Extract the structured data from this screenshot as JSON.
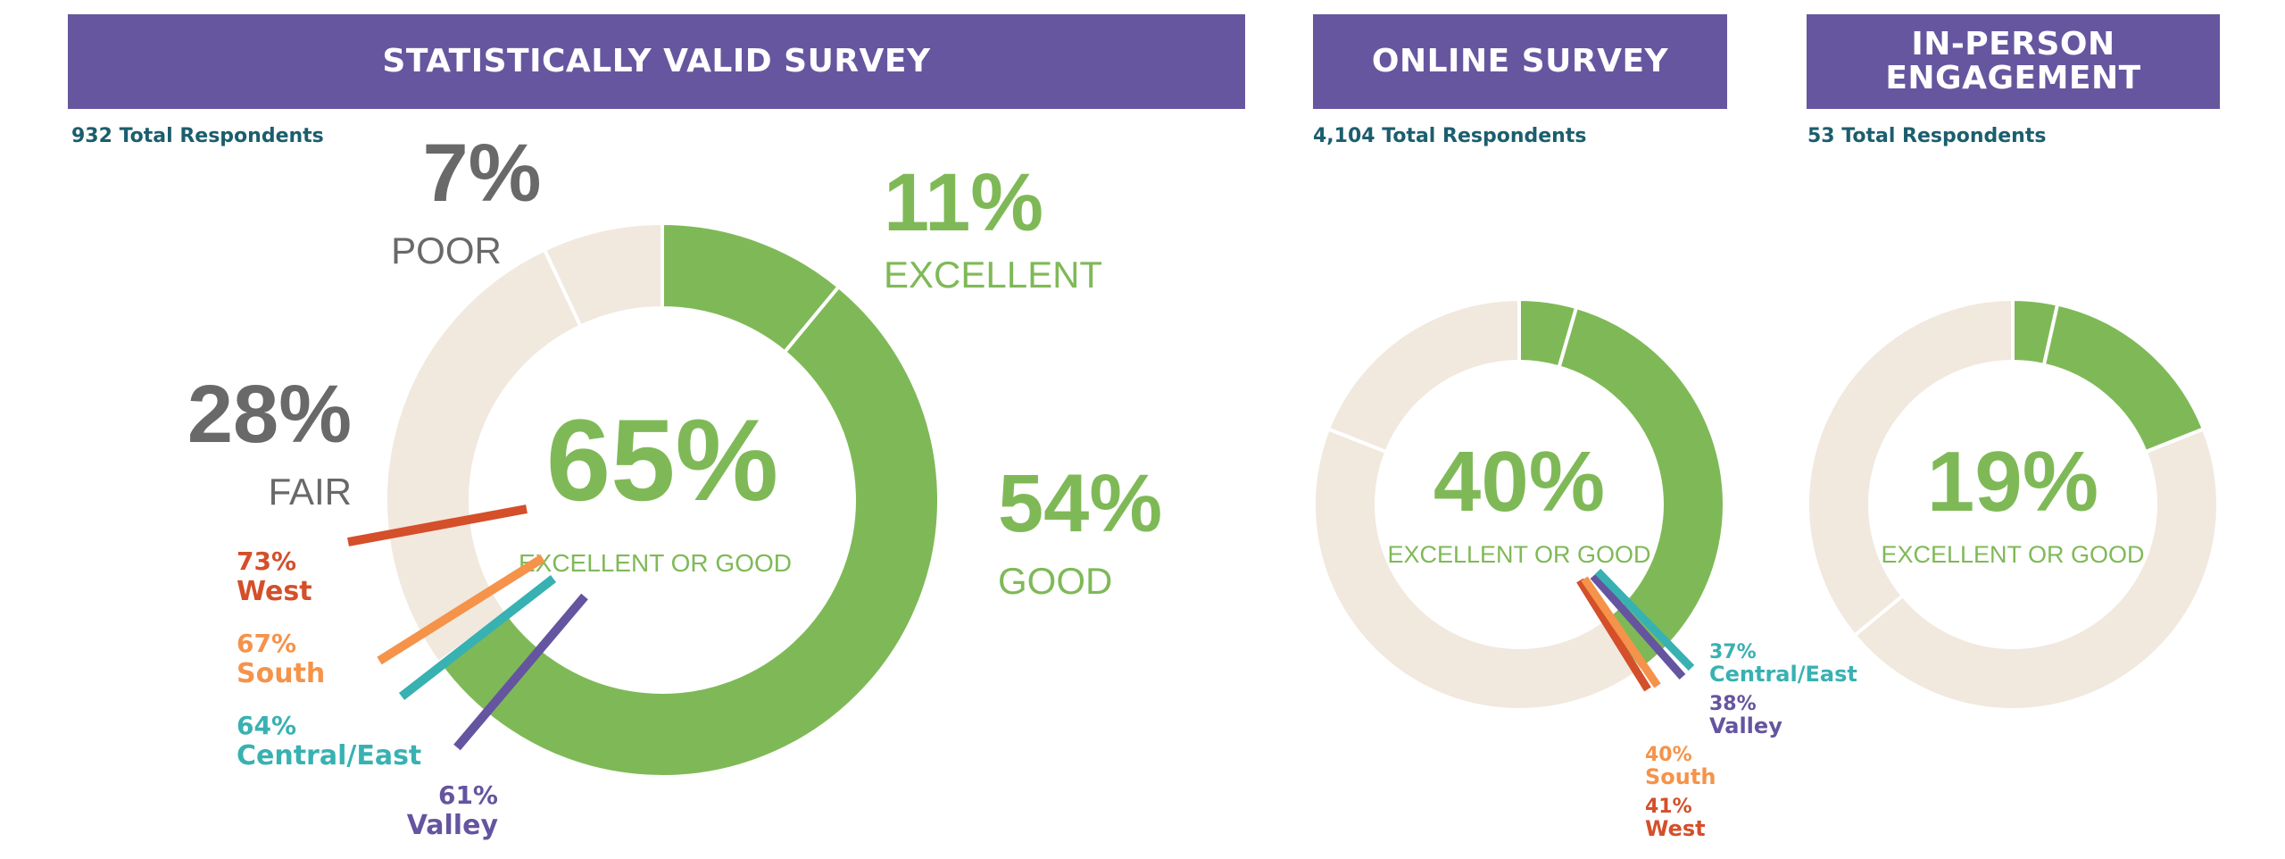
{
  "panels": [
    {
      "header": "STATISTICALLY VALID SURVEY",
      "respondents": "932 Total Respondents"
    },
    {
      "header": "ONLINE SURVEY",
      "respondents": "4,104 Total Respondents"
    },
    {
      "header": "IN-PERSON ENGAGEMENT",
      "header_lines": [
        "IN-PERSON",
        "ENGAGEMENT"
      ],
      "respondents": "53 Total Respondents"
    }
  ],
  "colors": {
    "header_bg": "#66569f",
    "green": "#7fb957",
    "beige": "#f1e8de",
    "gray_text": "#696969",
    "respondents_text": "#1b5e6e",
    "west": "#d44f2a",
    "south": "#f5934a",
    "central_east": "#38b1b2",
    "valley": "#65549f"
  },
  "chart_data": [
    {
      "type": "donut",
      "title": "STATISTICALLY VALID SURVEY",
      "subtitle": "932 Total Respondents",
      "slices": [
        {
          "label": "EXCELLENT",
          "value": 11,
          "display": "11%",
          "color": "#7fb957"
        },
        {
          "label": "GOOD",
          "value": 54,
          "display": "54%",
          "color": "#7fb957"
        },
        {
          "label": "FAIR",
          "value": 28,
          "display": "28%",
          "color": "#f1e8de"
        },
        {
          "label": "POOR",
          "value": 7,
          "display": "7%",
          "color": "#f1e8de"
        }
      ],
      "center": {
        "value": "65%",
        "label": "EXCELLENT OR GOOD"
      },
      "regions": [
        {
          "name": "West",
          "value": 73,
          "display": "73%",
          "color": "#d44f2a"
        },
        {
          "name": "South",
          "value": 67,
          "display": "67%",
          "color": "#f5934a"
        },
        {
          "name": "Central/East",
          "value": 64,
          "display": "64%",
          "color": "#38b1b2"
        },
        {
          "name": "Valley",
          "value": 61,
          "display": "61%",
          "color": "#65549f"
        }
      ]
    },
    {
      "type": "donut",
      "title": "ONLINE SURVEY",
      "subtitle": "4,104 Total Respondents",
      "slices": [
        {
          "value": 4.5,
          "color": "#7fb957"
        },
        {
          "value": 35.5,
          "color": "#7fb957"
        },
        {
          "value": 41,
          "color": "#f1e8de"
        },
        {
          "value": 19,
          "color": "#f1e8de"
        }
      ],
      "center": {
        "value": "40%",
        "label": "EXCELLENT OR GOOD"
      },
      "regions": [
        {
          "name": "Central/East",
          "value": 37,
          "display": "37%",
          "color": "#38b1b2"
        },
        {
          "name": "Valley",
          "value": 38,
          "display": "38%",
          "color": "#65549f"
        },
        {
          "name": "South",
          "value": 40,
          "display": "40%",
          "color": "#f5934a"
        },
        {
          "name": "West",
          "value": 41,
          "display": "41%",
          "color": "#d44f2a"
        }
      ]
    },
    {
      "type": "donut",
      "title": "IN-PERSON ENGAGEMENT",
      "subtitle": "53 Total Respondents",
      "slices": [
        {
          "value": 3.5,
          "color": "#7fb957"
        },
        {
          "value": 15.5,
          "color": "#7fb957"
        },
        {
          "value": 45,
          "color": "#f1e8de"
        },
        {
          "value": 36,
          "color": "#f1e8de"
        }
      ],
      "center": {
        "value": "19%",
        "label": "EXCELLENT OR GOOD"
      }
    }
  ]
}
